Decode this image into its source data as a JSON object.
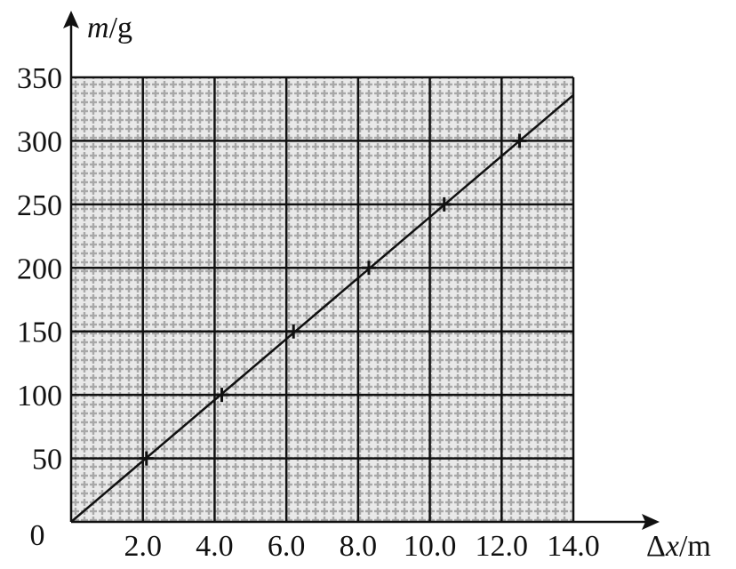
{
  "chart_data": {
    "type": "scatter",
    "title": "",
    "xlabel": "Δx/m",
    "xlabel_parts": {
      "symbol": "Δ",
      "var": "x",
      "unit": "/m"
    },
    "ylabel": "m/g",
    "ylabel_parts": {
      "var": "m",
      "unit": "/g"
    },
    "xlim": [
      0,
      14.0
    ],
    "ylim": [
      0,
      350
    ],
    "x_ticks": [
      "2.0",
      "4.0",
      "6.0",
      "8.0",
      "10.0",
      "12.0",
      "14.0"
    ],
    "y_ticks": [
      "50",
      "100",
      "150",
      "200",
      "250",
      "300",
      "350"
    ],
    "origin_label": "0",
    "grid": true,
    "series": [
      {
        "marker": "cross",
        "points": [
          {
            "x": 2.1,
            "y": 50
          },
          {
            "x": 4.2,
            "y": 100
          },
          {
            "x": 6.2,
            "y": 150
          },
          {
            "x": 8.3,
            "y": 200
          },
          {
            "x": 10.4,
            "y": 250
          },
          {
            "x": 12.5,
            "y": 300
          }
        ]
      }
    ],
    "fit_line": {
      "x": [
        0,
        14.0
      ],
      "y": [
        0,
        336
      ]
    }
  }
}
